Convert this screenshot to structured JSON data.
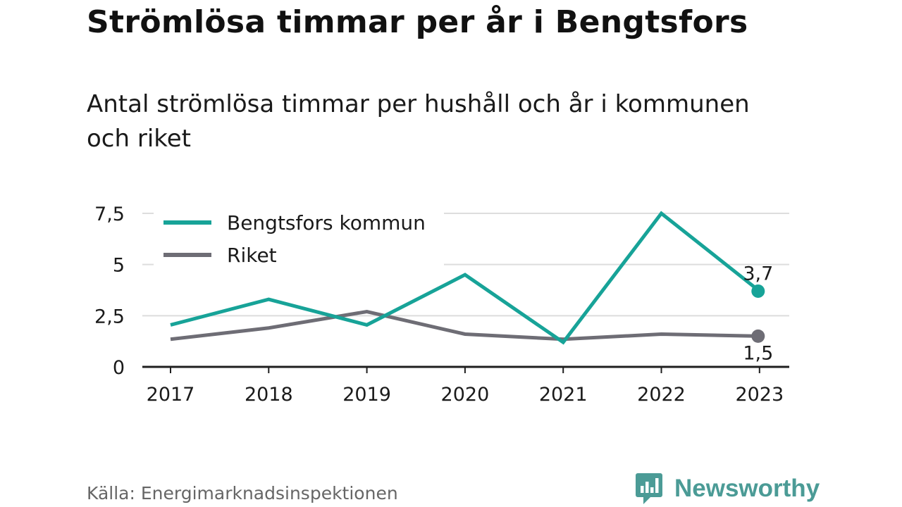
{
  "title": "Strömlösa timmar per år i Bengtsfors",
  "subtitle": "Antal strömlösa timmar per hushåll och år i kommunen och riket",
  "source": "Källa: Energimarknadsinspektionen",
  "brand": {
    "name": "Newsworthy",
    "icon": "newsworthy-logo-icon",
    "color": "#4b9b96"
  },
  "chart_data": {
    "type": "line",
    "x": [
      "2017",
      "2018",
      "2019",
      "2020",
      "2021",
      "2022",
      "2023"
    ],
    "series": [
      {
        "name": "Bengtsfors kommun",
        "color": "#17a398",
        "values": [
          2.05,
          3.3,
          2.05,
          4.5,
          1.2,
          7.5,
          3.7
        ],
        "end_label": "3,7"
      },
      {
        "name": "Riket",
        "color": "#6e6d75",
        "values": [
          1.35,
          1.9,
          2.7,
          1.6,
          1.35,
          1.6,
          1.5
        ],
        "end_label": "1,5"
      }
    ],
    "y_ticks": [
      {
        "value": 0,
        "label": "0"
      },
      {
        "value": 2.5,
        "label": "2,5"
      },
      {
        "value": 5,
        "label": "5"
      },
      {
        "value": 7.5,
        "label": "7,5"
      }
    ],
    "ylim": [
      0,
      7.5
    ],
    "grid": true,
    "legend": "top-left",
    "xlabel": "",
    "ylabel": ""
  }
}
